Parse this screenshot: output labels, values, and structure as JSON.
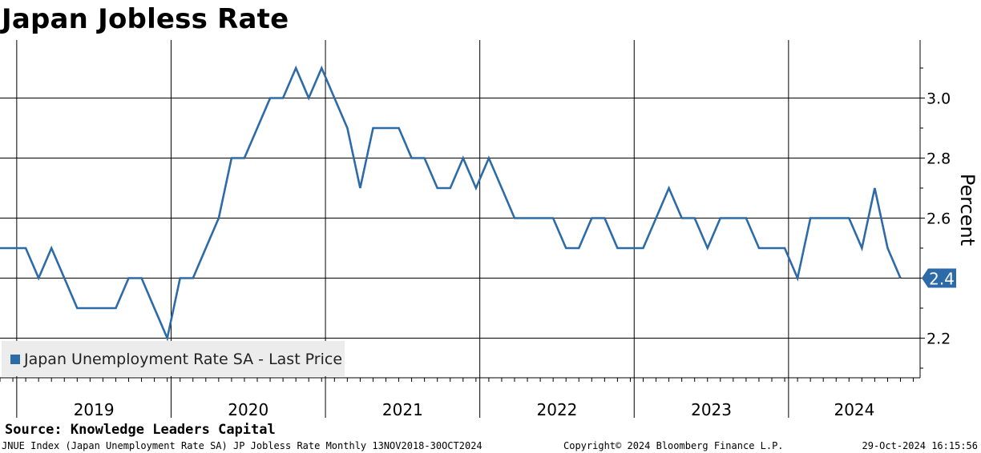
{
  "title": "Japan Jobless Rate",
  "source": "Source: Knowledge Leaders Capital",
  "footer": {
    "left": "JNUE Index (Japan Unemployment Rate SA) JP Jobless Rate  Monthly 13NOV2018-30OCT2024",
    "center": "Copyright© 2024 Bloomberg Finance L.P.",
    "right": "29-Oct-2024 16:15:56"
  },
  "colors": {
    "series": "#2d6aa8",
    "grid": "#000000",
    "legend_bg": "#ececec",
    "last_badge": "#2d6aa8"
  },
  "chart_data": {
    "type": "line",
    "title": "Japan Jobless Rate",
    "ylabel": "Percent",
    "xlabel": "",
    "ylim": [
      2.08,
      3.18
    ],
    "yticks": [
      2.2,
      2.4,
      2.6,
      2.8,
      3.0
    ],
    "ytick_labels": [
      "2.2",
      "2.4",
      "2.6",
      "2.8",
      "3.0"
    ],
    "year_labels": [
      "2019",
      "2020",
      "2021",
      "2022",
      "2023",
      "2024"
    ],
    "x_start": "2018-11",
    "series": [
      {
        "name": "Japan Unemployment Rate SA - Last Price",
        "values": [
          2.5,
          2.5,
          2.5,
          2.4,
          2.5,
          2.4,
          2.3,
          2.3,
          2.3,
          2.3,
          2.4,
          2.4,
          2.3,
          2.2,
          2.4,
          2.4,
          2.5,
          2.6,
          2.8,
          2.8,
          2.9,
          3.0,
          3.0,
          3.1,
          3.0,
          3.1,
          3.0,
          2.9,
          2.7,
          2.9,
          2.9,
          2.9,
          2.8,
          2.8,
          2.7,
          2.7,
          2.8,
          2.7,
          2.8,
          2.7,
          2.6,
          2.6,
          2.6,
          2.6,
          2.5,
          2.5,
          2.6,
          2.6,
          2.5,
          2.5,
          2.5,
          2.6,
          2.7,
          2.6,
          2.6,
          2.5,
          2.6,
          2.6,
          2.6,
          2.5,
          2.5,
          2.5,
          2.4,
          2.6,
          2.6,
          2.6,
          2.6,
          2.5,
          2.7,
          2.5,
          2.4
        ]
      }
    ],
    "last_value_label": "2.4",
    "legend": "Japan Unemployment Rate SA - Last Price",
    "legend_position": "bottom-left"
  }
}
